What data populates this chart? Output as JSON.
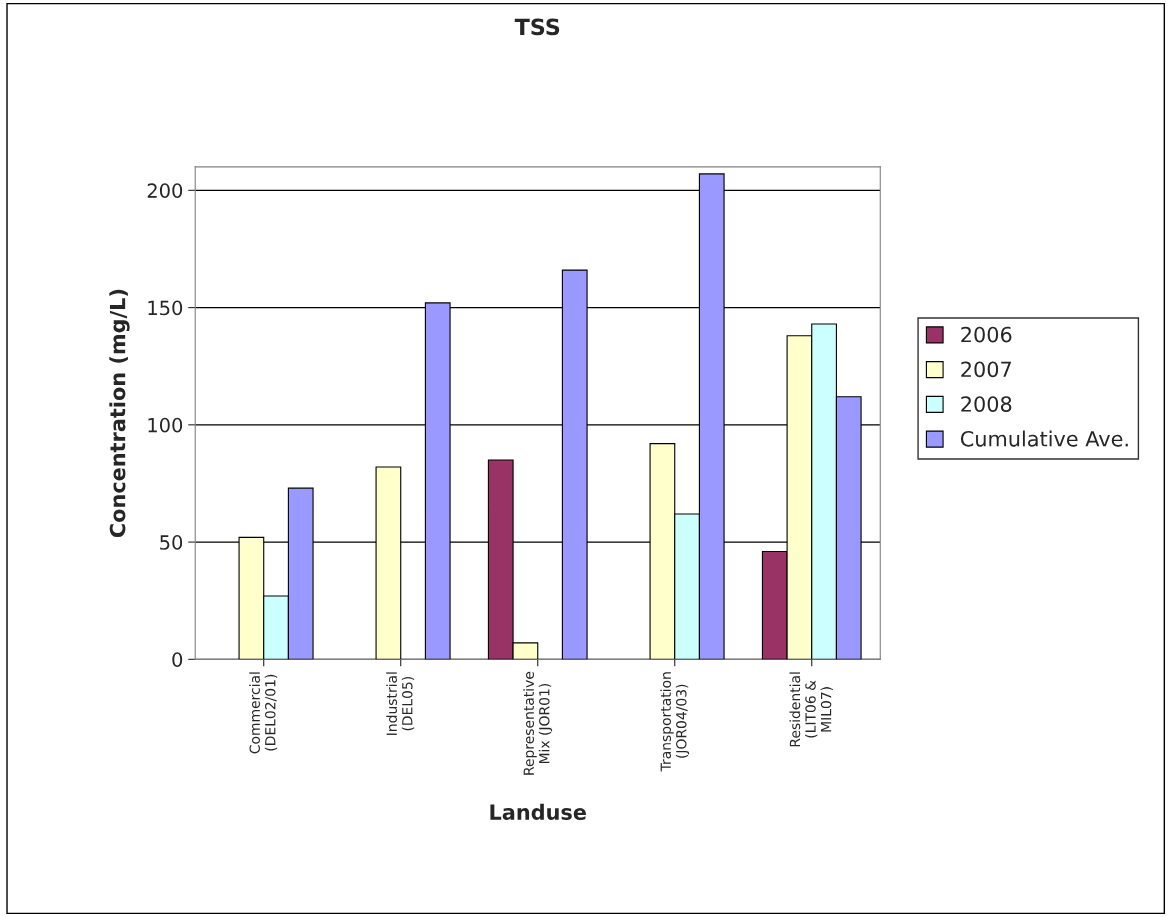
{
  "chart_data": {
    "type": "bar",
    "title": "TSS",
    "xlabel": "Landuse",
    "ylabel": "Concentration (mg/L)",
    "categories": [
      "Commercial\n(DEL02/01)",
      "Industrial\n(DEL05)",
      "Representative\nMix (JOR01)",
      "Transportation\n(JOR04/03)",
      "Residential\n(LIT06 &\nMIL07)"
    ],
    "series": [
      {
        "name": "2006",
        "color": "#993366",
        "values": [
          null,
          null,
          85,
          null,
          46
        ]
      },
      {
        "name": "2007",
        "color": "#ffffcc",
        "values": [
          52,
          82,
          7,
          92,
          138
        ]
      },
      {
        "name": "2008",
        "color": "#ccffff",
        "values": [
          27,
          null,
          null,
          62,
          143
        ]
      },
      {
        "name": "Cumulative Ave.",
        "color": "#9999ff",
        "values": [
          73,
          152,
          166,
          207,
          112
        ]
      }
    ],
    "ylim": [
      0,
      210
    ],
    "yticks": [
      0,
      50,
      100,
      150,
      200
    ],
    "grid": "y",
    "legend": "right"
  }
}
